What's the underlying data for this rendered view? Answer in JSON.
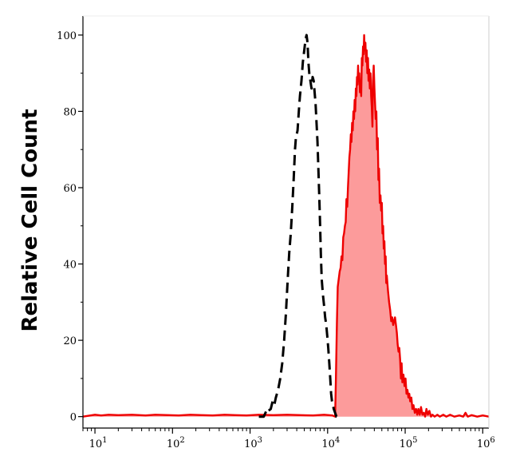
{
  "chart_data": {
    "type": "area",
    "title": "",
    "xlabel": "",
    "ylabel": "Relative Cell Count",
    "x_scale": "log",
    "xlim": [
      7,
      1200000
    ],
    "ylim": [
      -3,
      105
    ],
    "grid": false,
    "legend": "none",
    "y_ticks": [
      {
        "value": 0,
        "label": "0"
      },
      {
        "value": 20,
        "label": "20"
      },
      {
        "value": 40,
        "label": "40"
      },
      {
        "value": 60,
        "label": "60"
      },
      {
        "value": 80,
        "label": "80"
      },
      {
        "value": 100,
        "label": "100"
      }
    ],
    "x_ticks": [
      {
        "value": 10,
        "base": "10",
        "exp": "1"
      },
      {
        "value": 100,
        "base": "10",
        "exp": "2"
      },
      {
        "value": 1000,
        "base": "10",
        "exp": "3"
      },
      {
        "value": 10000,
        "base": "10",
        "exp": "4"
      },
      {
        "value": 100000,
        "base": "10",
        "exp": "5"
      },
      {
        "value": 1000000,
        "base": "10",
        "exp": "6"
      }
    ],
    "series": [
      {
        "style": "dashed",
        "color": "#000000",
        "fill": "none",
        "points": [
          [
            1300,
            0
          ],
          [
            1500,
            0
          ],
          [
            1580,
            1
          ],
          [
            1650,
            2
          ],
          [
            1720,
            1.5
          ],
          [
            1850,
            2
          ],
          [
            1950,
            4
          ],
          [
            2050,
            3
          ],
          [
            2150,
            5
          ],
          [
            2300,
            7
          ],
          [
            2450,
            10
          ],
          [
            2600,
            14
          ],
          [
            2750,
            20
          ],
          [
            2900,
            27
          ],
          [
            3000,
            33
          ],
          [
            3100,
            38
          ],
          [
            3200,
            43
          ],
          [
            3350,
            48
          ],
          [
            3500,
            55
          ],
          [
            3650,
            62
          ],
          [
            3800,
            70
          ],
          [
            3900,
            73
          ],
          [
            4000,
            74
          ],
          [
            4100,
            75
          ],
          [
            4250,
            80
          ],
          [
            4400,
            84
          ],
          [
            4600,
            88
          ],
          [
            4800,
            93
          ],
          [
            5000,
            96
          ],
          [
            5200,
            99
          ],
          [
            5350,
            100
          ],
          [
            5500,
            98
          ],
          [
            5650,
            93
          ],
          [
            5800,
            90
          ],
          [
            6000,
            88
          ],
          [
            6200,
            86
          ],
          [
            6400,
            89
          ],
          [
            6600,
            88
          ],
          [
            6800,
            85
          ],
          [
            7000,
            82
          ],
          [
            7200,
            77
          ],
          [
            7400,
            72
          ],
          [
            7600,
            65
          ],
          [
            7800,
            58
          ],
          [
            8000,
            50
          ],
          [
            8200,
            42
          ],
          [
            8400,
            36
          ],
          [
            8700,
            32
          ],
          [
            9000,
            29
          ],
          [
            9300,
            26
          ],
          [
            9600,
            24
          ],
          [
            9900,
            21
          ],
          [
            10200,
            18
          ],
          [
            10500,
            14
          ],
          [
            10800,
            10
          ],
          [
            11100,
            6
          ],
          [
            11400,
            4
          ],
          [
            11700,
            3
          ],
          [
            12000,
            2
          ],
          [
            12500,
            1
          ],
          [
            13000,
            0
          ],
          [
            14000,
            0
          ]
        ]
      },
      {
        "style": "solid",
        "color": "#ee0000",
        "fill": "#fc9b9b",
        "points": [
          [
            7,
            0
          ],
          [
            10,
            0.5
          ],
          [
            12,
            0.3
          ],
          [
            15,
            0.5
          ],
          [
            20,
            0.4
          ],
          [
            30,
            0.5
          ],
          [
            45,
            0.3
          ],
          [
            60,
            0.5
          ],
          [
            90,
            0.4
          ],
          [
            120,
            0.3
          ],
          [
            170,
            0.5
          ],
          [
            240,
            0.4
          ],
          [
            330,
            0.3
          ],
          [
            470,
            0.5
          ],
          [
            650,
            0.4
          ],
          [
            900,
            0.3
          ],
          [
            1300,
            0.5
          ],
          [
            2000,
            0.4
          ],
          [
            3000,
            0.5
          ],
          [
            4500,
            0.4
          ],
          [
            6500,
            0.3
          ],
          [
            9000,
            0.5
          ],
          [
            11500,
            0.3
          ],
          [
            12500,
            0
          ],
          [
            12800,
            10
          ],
          [
            13200,
            25
          ],
          [
            13500,
            34
          ],
          [
            13900,
            36
          ],
          [
            14300,
            38
          ],
          [
            14700,
            39
          ],
          [
            15100,
            42
          ],
          [
            15500,
            41
          ],
          [
            15900,
            47
          ],
          [
            16300,
            48
          ],
          [
            16700,
            50
          ],
          [
            17100,
            51
          ],
          [
            17500,
            57
          ],
          [
            17900,
            55
          ],
          [
            18300,
            60
          ],
          [
            18700,
            64
          ],
          [
            19100,
            68
          ],
          [
            19500,
            70
          ],
          [
            19900,
            74
          ],
          [
            20300,
            72
          ],
          [
            20700,
            77
          ],
          [
            21100,
            75
          ],
          [
            21500,
            80
          ],
          [
            21900,
            78
          ],
          [
            22300,
            83
          ],
          [
            22700,
            80
          ],
          [
            23100,
            86
          ],
          [
            23500,
            84
          ],
          [
            23900,
            89
          ],
          [
            24300,
            87
          ],
          [
            24700,
            92
          ],
          [
            25100,
            88
          ],
          [
            25600,
            90
          ],
          [
            26100,
            85
          ],
          [
            26600,
            88
          ],
          [
            27100,
            84
          ],
          [
            27600,
            94
          ],
          [
            28100,
            92
          ],
          [
            28600,
            97
          ],
          [
            29100,
            95
          ],
          [
            29600,
            100
          ],
          [
            30100,
            96
          ],
          [
            30700,
            98
          ],
          [
            31300,
            93
          ],
          [
            31900,
            96
          ],
          [
            32500,
            90
          ],
          [
            33100,
            94
          ],
          [
            33700,
            88
          ],
          [
            34300,
            91
          ],
          [
            35000,
            86
          ],
          [
            35700,
            90
          ],
          [
            36400,
            84
          ],
          [
            37100,
            81
          ],
          [
            37800,
            76
          ],
          [
            38500,
            88
          ],
          [
            39300,
            92
          ],
          [
            40100,
            86
          ],
          [
            40900,
            82
          ],
          [
            41700,
            78
          ],
          [
            42500,
            80
          ],
          [
            43400,
            70
          ],
          [
            44300,
            73
          ],
          [
            45200,
            62
          ],
          [
            46100,
            65
          ],
          [
            47000,
            56
          ],
          [
            48000,
            58
          ],
          [
            49000,
            54
          ],
          [
            50000,
            56
          ],
          [
            51000,
            48
          ],
          [
            52000,
            50
          ],
          [
            53000,
            44
          ],
          [
            54000,
            46
          ],
          [
            55000,
            40
          ],
          [
            56000,
            42
          ],
          [
            57000,
            35
          ],
          [
            58000,
            37
          ],
          [
            60000,
            33
          ],
          [
            62000,
            30
          ],
          [
            64000,
            28
          ],
          [
            66000,
            25
          ],
          [
            68000,
            26
          ],
          [
            70000,
            24
          ],
          [
            72000,
            25
          ],
          [
            74000,
            26
          ],
          [
            76000,
            24
          ],
          [
            78000,
            22
          ],
          [
            80000,
            19
          ],
          [
            82000,
            17
          ],
          [
            84000,
            18
          ],
          [
            86000,
            15
          ],
          [
            88000,
            10
          ],
          [
            90000,
            14
          ],
          [
            92000,
            9
          ],
          [
            95000,
            11
          ],
          [
            98000,
            8
          ],
          [
            101000,
            10
          ],
          [
            104000,
            6
          ],
          [
            107000,
            7
          ],
          [
            110000,
            5
          ],
          [
            113000,
            6
          ],
          [
            116000,
            4
          ],
          [
            120000,
            5
          ],
          [
            124000,
            2
          ],
          [
            128000,
            3
          ],
          [
            133000,
            1
          ],
          [
            138000,
            2
          ],
          [
            143000,
            0.5
          ],
          [
            148000,
            2
          ],
          [
            154000,
            0.5
          ],
          [
            160000,
            2.5
          ],
          [
            167000,
            0.5
          ],
          [
            174000,
            1
          ],
          [
            181000,
            0
          ],
          [
            188000,
            2
          ],
          [
            196000,
            0.5
          ],
          [
            205000,
            1.5
          ],
          [
            215000,
            0
          ],
          [
            225000,
            0.5
          ],
          [
            240000,
            0
          ],
          [
            260000,
            0.5
          ],
          [
            280000,
            0
          ],
          [
            310000,
            0.5
          ],
          [
            340000,
            0
          ],
          [
            380000,
            0.5
          ],
          [
            430000,
            0
          ],
          [
            500000,
            0.3
          ],
          [
            560000,
            0
          ],
          [
            600000,
            1
          ],
          [
            640000,
            0
          ],
          [
            720000,
            0.4
          ],
          [
            850000,
            0
          ],
          [
            1000000,
            0.3
          ],
          [
            1200000,
            0
          ]
        ]
      }
    ]
  }
}
